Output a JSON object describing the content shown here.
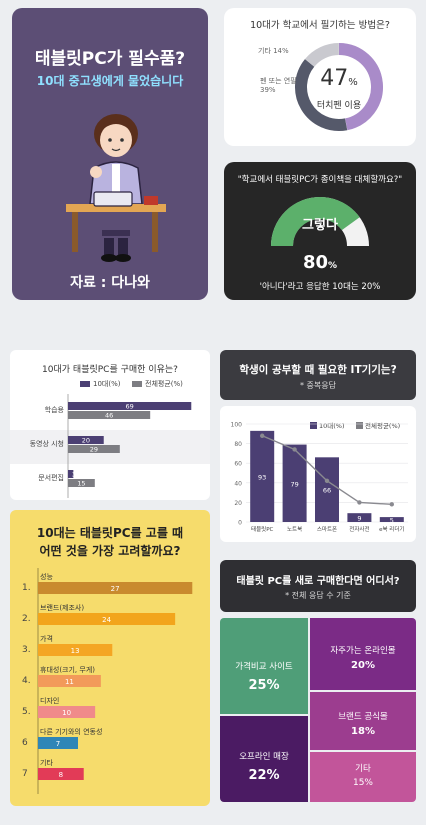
{
  "intro": {
    "title": "태블릿PC가 필수품?",
    "subtitle": "10대 중고생에게 물었습니다",
    "source": "자료 : 다나와"
  },
  "donut1": {
    "question": "10대가 학교에서 필기하는 방법은?",
    "center_value": "47",
    "center_unit": "%",
    "center_label": "터치펜 이용",
    "label_other": "기타 14%",
    "label_pen_line1": "펜 또는 연필",
    "label_pen_line2": "39%"
  },
  "gauge": {
    "question": "\"학교에서 태블릿PC가 종이책을 대체할까요?\"",
    "label": "그렇다",
    "value_number": "80",
    "value_unit": "%",
    "footnote": "'아니다'라고 응답한 10대는 20%"
  },
  "reasons": {
    "title": "10대가 태블릿PC를 구매한 이유는?",
    "legend": [
      "10대(%)",
      "전체평균(%)"
    ],
    "groups": [
      "학습용",
      "동영상 시청",
      "문서편집"
    ]
  },
  "it_devices": {
    "title": "학생이 공부할 때 필요한 IT기기는?",
    "subtitle": "* 중복응답",
    "legend": [
      "10대(%)",
      "전체평균(%)"
    ],
    "y_ticks": [
      "100",
      "80",
      "60",
      "40",
      "20",
      "0"
    ],
    "categories": [
      "태블릿PC",
      "노트북",
      "스마트폰",
      "전자사전",
      "e북 리더기"
    ]
  },
  "factors": {
    "title_line1": "10대는 태블릿PC를 고를 때",
    "title_line2": "어떤 것을 가장 고려할까요?",
    "items": [
      {
        "num": "1.",
        "label": "성능",
        "value": "27"
      },
      {
        "num": "2.",
        "label": "브랜드(제조사)",
        "value": "24"
      },
      {
        "num": "3.",
        "label": "가격",
        "value": "13"
      },
      {
        "num": "4.",
        "label": "휴대성(크기, 무게)",
        "value": "11"
      },
      {
        "num": "5.",
        "label": "디자인",
        "value": "10"
      },
      {
        "num": "6",
        "label": "다른 기기와의 연동성",
        "value": "7"
      },
      {
        "num": "7",
        "label": "기타",
        "value": "8"
      }
    ]
  },
  "treemap": {
    "title": "태블릿 PC를 새로 구매한다면 어디서?",
    "subtitle": "* 전체 응답 수 기준",
    "cells": [
      {
        "label": "가격비교 사이트",
        "value": "25%",
        "color": "#4f9e78"
      },
      {
        "label": "자주가는 온라인몰",
        "value": "20%",
        "color": "#7b2b86"
      },
      {
        "label": "브랜드 공식몰",
        "value": "18%",
        "color": "#9c3d8f"
      },
      {
        "label": "오프라인 매장",
        "value": "22%",
        "color": "#4b1b63"
      },
      {
        "label": "기타",
        "value": "15%",
        "color": "#c2559a"
      }
    ]
  },
  "chart_data": [
    {
      "type": "pie",
      "title": "10대가 학교에서 필기하는 방법은?",
      "labels": [
        "터치펜 이용",
        "펜 또는 연필",
        "기타"
      ],
      "values": [
        47,
        39,
        14
      ]
    },
    {
      "type": "pie",
      "title": "학교에서 태블릿PC가 종이책을 대체할까요?",
      "labels": [
        "그렇다",
        "아니다"
      ],
      "values": [
        80,
        20
      ]
    },
    {
      "type": "bar",
      "title": "10대가 태블릿PC를 구매한 이유는?",
      "categories": [
        "학습용",
        "동영상 시청",
        "문서편집"
      ],
      "series": [
        {
          "name": "10대(%)",
          "values": [
            69,
            20,
            3
          ],
          "color": "#4b3f73"
        },
        {
          "name": "전체평균(%)",
          "values": [
            46,
            29,
            15
          ],
          "color": "#7d7d82"
        }
      ],
      "xlim": [
        0,
        75
      ]
    },
    {
      "type": "bar",
      "title": "학생이 공부할 때 필요한 IT기기는?",
      "categories": [
        "태블릿PC",
        "노트북",
        "스마트폰",
        "전자사전",
        "e북 리더기"
      ],
      "series": [
        {
          "name": "10대(%)",
          "values": [
            93,
            79,
            66,
            9,
            5
          ],
          "color": "#4b3f73"
        },
        {
          "name": "전체평균(%)",
          "values": [
            88,
            74,
            42,
            20,
            18
          ],
          "color": "#7d7d82"
        }
      ],
      "ylim": [
        0,
        100
      ]
    },
    {
      "type": "bar",
      "title": "10대는 태블릿PC를 고를 때 어떤 것을 가장 고려할까요?",
      "categories": [
        "성능",
        "브랜드(제조사)",
        "가격",
        "휴대성(크기, 무게)",
        "디자인",
        "다른 기기와의 연동성",
        "기타"
      ],
      "values": [
        27,
        24,
        13,
        11,
        10,
        7,
        8
      ],
      "colors": [
        "#c98a2e",
        "#f2a51c",
        "#f4a623",
        "#f29a5a",
        "#f08a8a",
        "#2f86b7",
        "#e23b57"
      ],
      "xlim": [
        0,
        28
      ]
    },
    {
      "type": "heatmap",
      "title": "태블릿 PC를 새로 구매한다면 어디서?",
      "labels": [
        "가격비교 사이트",
        "자주가는 온라인몰",
        "브랜드 공식몰",
        "오프라인 매장",
        "기타"
      ],
      "values": [
        25,
        20,
        18,
        22,
        15
      ]
    }
  ]
}
